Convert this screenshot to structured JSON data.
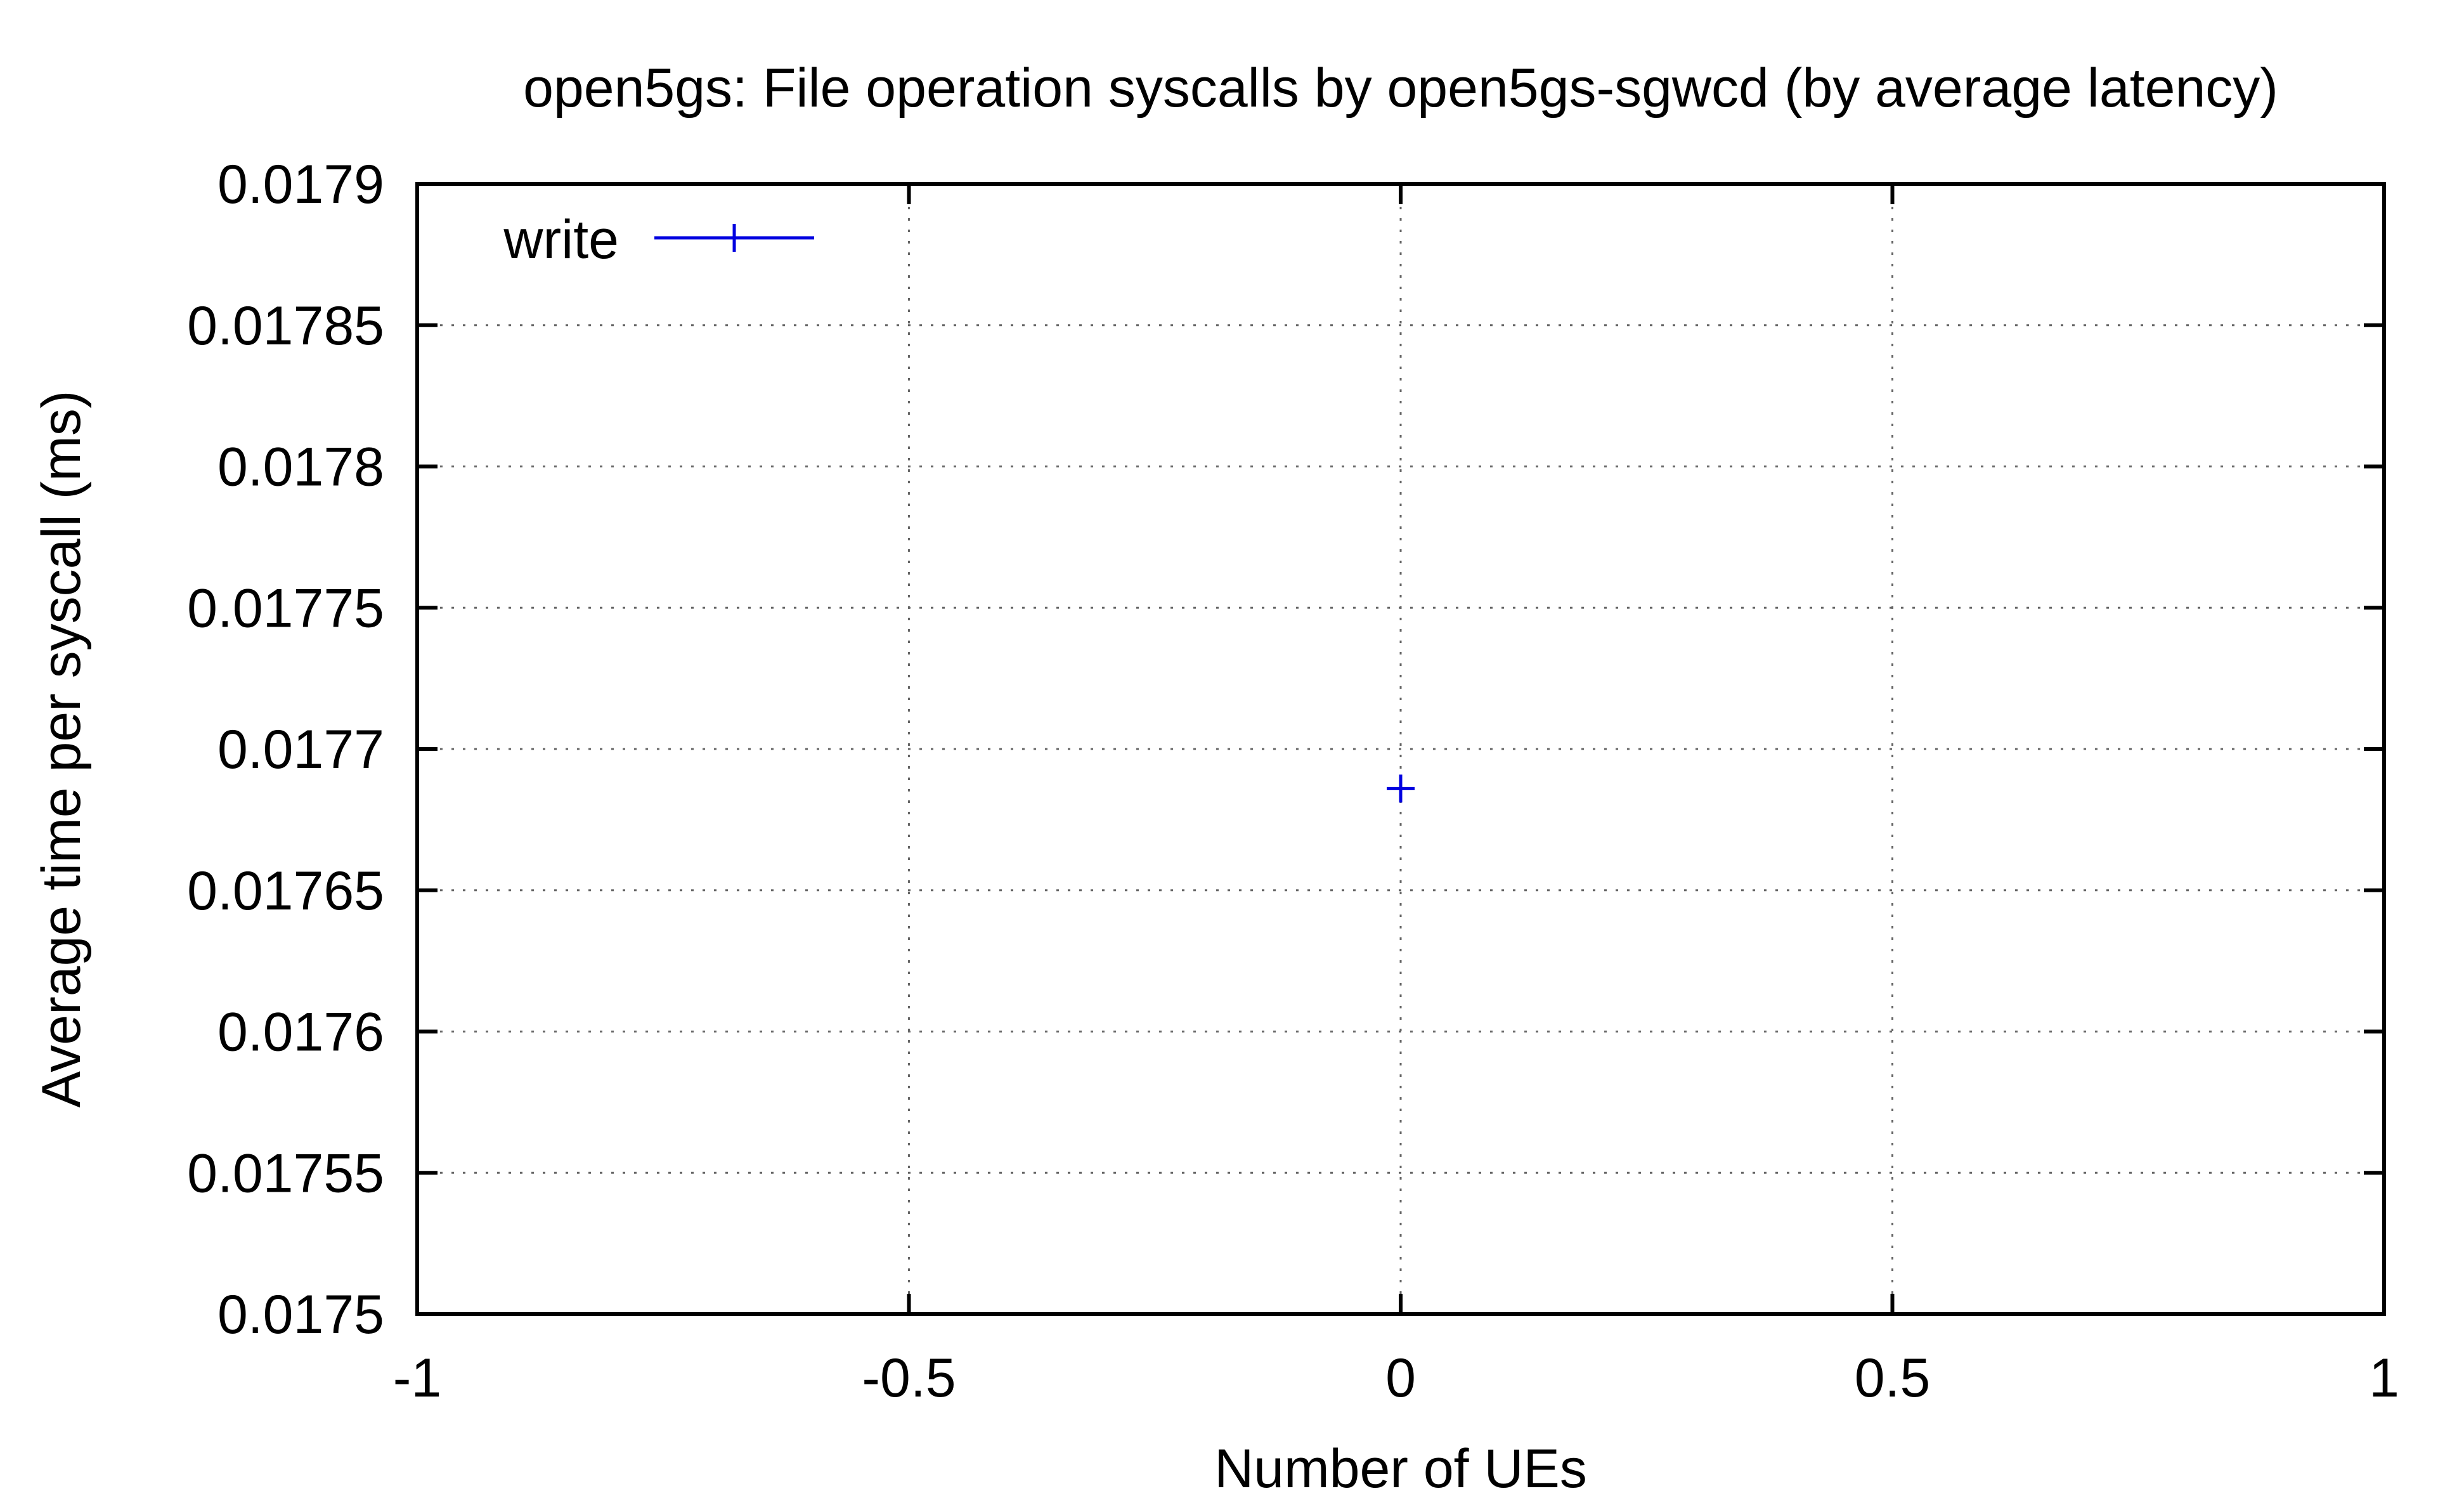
{
  "chart_data": {
    "type": "scatter",
    "title": "open5gs: File operation syscalls by open5gs-sgwcd (by average latency)",
    "xlabel": "Number of UEs",
    "ylabel": "Average time per syscall (ms)",
    "xlim": [
      -1,
      1
    ],
    "ylim": [
      0.0175,
      0.0179
    ],
    "xticks": [
      {
        "value": -1,
        "label": "-1"
      },
      {
        "value": -0.5,
        "label": "-0.5"
      },
      {
        "value": 0,
        "label": "0"
      },
      {
        "value": 0.5,
        "label": "0.5"
      },
      {
        "value": 1,
        "label": "1"
      }
    ],
    "yticks": [
      {
        "value": 0.0175,
        "label": "0.0175"
      },
      {
        "value": 0.01755,
        "label": "0.01755"
      },
      {
        "value": 0.0176,
        "label": "0.0176"
      },
      {
        "value": 0.01765,
        "label": "0.01765"
      },
      {
        "value": 0.0177,
        "label": "0.0177"
      },
      {
        "value": 0.01775,
        "label": "0.01775"
      },
      {
        "value": 0.0178,
        "label": "0.0178"
      },
      {
        "value": 0.01785,
        "label": "0.01785"
      },
      {
        "value": 0.0179,
        "label": "0.0179"
      }
    ],
    "grid": true,
    "legend_position": "top-left",
    "series": [
      {
        "name": "write",
        "color": "#0000e0",
        "marker": "plus",
        "points": [
          {
            "x": 0,
            "y": 0.017686
          }
        ]
      }
    ]
  }
}
